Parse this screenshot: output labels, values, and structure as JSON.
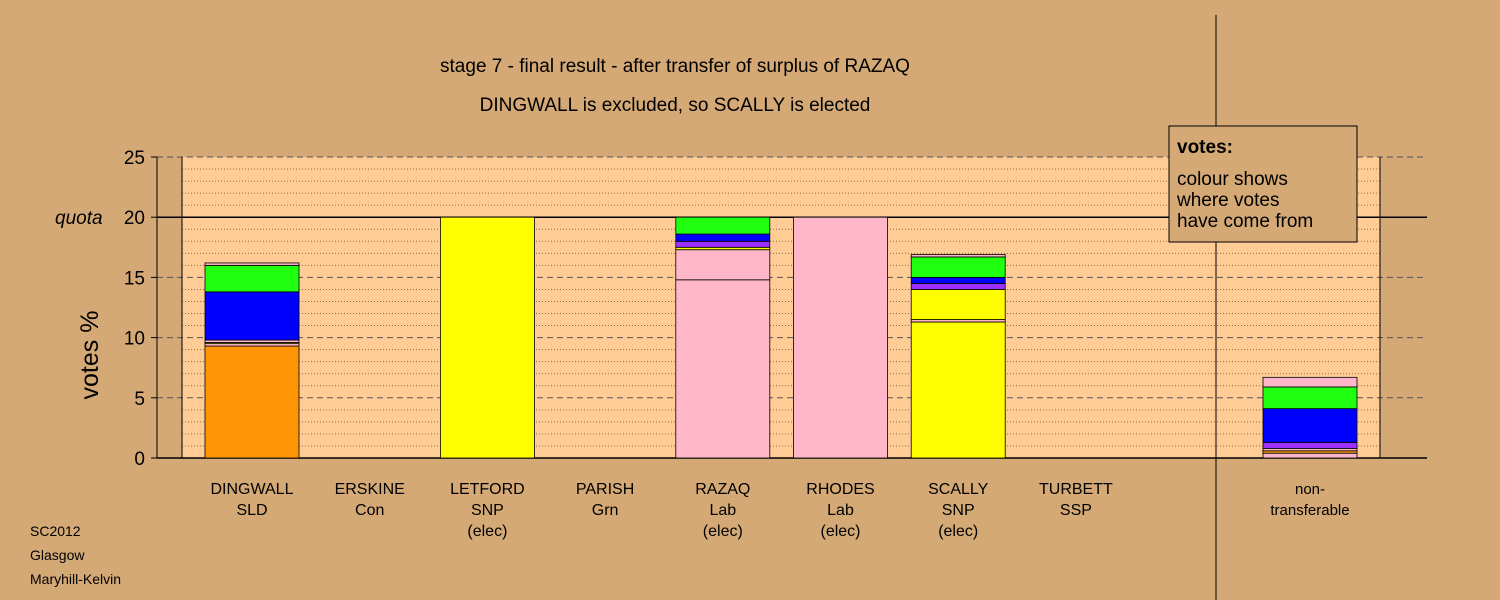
{
  "chart_data": {
    "type": "bar",
    "stacked": true,
    "title": "stage 7 - final result - after transfer of surplus of RAZAQ",
    "subtitle": "DINGWALL is excluded, so SCALLY is elected",
    "ylabel": "votes %",
    "ylim": [
      0,
      25
    ],
    "yticks": [
      "0",
      "5",
      "10",
      "15",
      "20",
      "25"
    ],
    "quota": {
      "label": "quota",
      "value": 20
    },
    "grid": true,
    "legend": {
      "placement": "top-right",
      "title": "votes:",
      "lines": [
        "colour shows",
        "where votes",
        "have come from"
      ]
    },
    "candidates": [
      {
        "name": "DINGWALL",
        "party": "SLD",
        "status": "",
        "segments": [
          {
            "color": "#ff9505",
            "value": 9.3
          },
          {
            "color": "#ffb6c8",
            "value": 0.2
          },
          {
            "color": "#ffff00",
            "value": 0.1
          },
          {
            "color": "#ffb6c8",
            "value": 0.2
          },
          {
            "color": "#0000ff",
            "value": 4.0
          },
          {
            "color": "#20ff10",
            "value": 2.2
          },
          {
            "color": "#ffb6c8",
            "value": 0.2
          }
        ]
      },
      {
        "name": "ERSKINE",
        "party": "Con",
        "status": "",
        "segments": []
      },
      {
        "name": "LETFORD",
        "party": "SNP",
        "status": "(elec)",
        "segments": [
          {
            "color": "#ffff00",
            "value": 20.0
          }
        ]
      },
      {
        "name": "PARISH",
        "party": "Grn",
        "status": "",
        "segments": []
      },
      {
        "name": "RAZAQ",
        "party": "Lab",
        "status": "(elec)",
        "segments": [
          {
            "color": "#ffb6c8",
            "value": 14.8
          },
          {
            "color": "#ffb6c8",
            "value": 2.5
          },
          {
            "color": "#ffff00",
            "value": 0.2
          },
          {
            "color": "#9b30ff",
            "value": 0.5
          },
          {
            "color": "#0000ff",
            "value": 0.6
          },
          {
            "color": "#20ff10",
            "value": 1.4
          }
        ]
      },
      {
        "name": "RHODES",
        "party": "Lab",
        "status": "(elec)",
        "segments": [
          {
            "color": "#ffb6c8",
            "value": 20.0
          }
        ]
      },
      {
        "name": "SCALLY",
        "party": "SNP",
        "status": "(elec)",
        "segments": [
          {
            "color": "#ffff00",
            "value": 11.3
          },
          {
            "color": "#ffb6c8",
            "value": 0.2
          },
          {
            "color": "#ffff00",
            "value": 2.5
          },
          {
            "color": "#9b30ff",
            "value": 0.5
          },
          {
            "color": "#0000ff",
            "value": 0.5
          },
          {
            "color": "#20ff10",
            "value": 1.7
          },
          {
            "color": "#ffb6c8",
            "value": 0.2
          }
        ]
      },
      {
        "name": "TURBETT",
        "party": "SSP",
        "status": "",
        "segments": []
      }
    ],
    "non_transferable": {
      "label_lines": [
        "non-",
        "transferable"
      ],
      "segments": [
        {
          "color": "#ffb6c8",
          "value": 0.4
        },
        {
          "color": "#ff9505",
          "value": 0.2
        },
        {
          "color": "#ffb6c8",
          "value": 0.2
        },
        {
          "color": "#9b30ff",
          "value": 0.5
        },
        {
          "color": "#0000ff",
          "value": 2.8
        },
        {
          "color": "#20ff10",
          "value": 1.8
        },
        {
          "color": "#ffb6c8",
          "value": 0.8
        }
      ]
    }
  },
  "footer": {
    "lines": [
      "SC2012",
      "Glasgow",
      "Maryhill-Kelvin"
    ]
  }
}
